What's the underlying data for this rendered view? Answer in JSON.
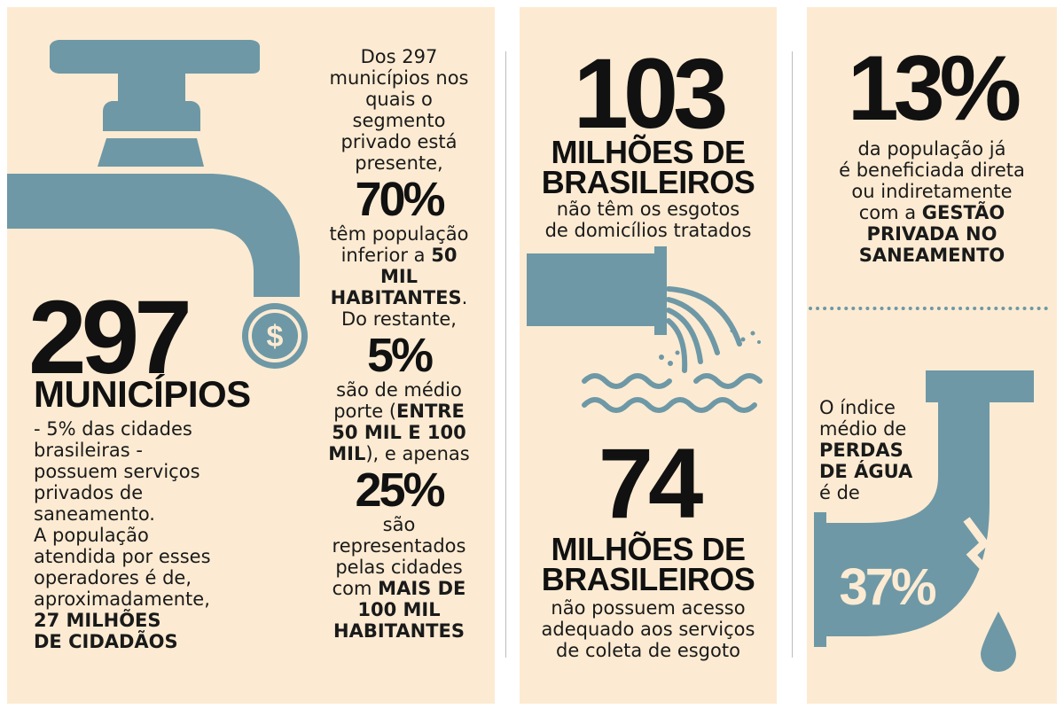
{
  "panel1": {
    "big_number": "297",
    "big_label": "MUNICÍPIOS",
    "description": {
      "line1": "- 5% das cidades",
      "line2": "brasileiras -",
      "line3": "possuem serviços",
      "line4": "privados de",
      "line5": "saneamento.",
      "line6": "A população",
      "line7": "atendida por esses",
      "line8": "operadores é de,",
      "line9": "aproximadamente,",
      "bold1": "27 MILHÕES",
      "bold2": "DE CIDADÃOS"
    },
    "coin_symbol": "$",
    "column": {
      "intro1": "Dos 297",
      "intro2": "municípios nos",
      "intro3": "quais o",
      "intro4": "segmento",
      "intro5": "privado está",
      "intro6": "presente,",
      "pct1": "70%",
      "a1": "têm população",
      "a2_pre": "inferior a",
      "a2_bold": "50",
      "a3_bold": "MIL",
      "a4_bold": "HABITANTES",
      "a4_post": ".",
      "a5": "Do restante,",
      "pct2": "5%",
      "b1": "são de médio",
      "b2_pre": "porte (",
      "b2_bold": "ENTRE",
      "b3_bold": "50 MIL E 100",
      "b4_bold": "MIL",
      "b4_post": "), e apenas",
      "pct3": "25%",
      "c1": "são",
      "c2": "representados",
      "c3": "pelas cidades",
      "c4_pre": "com",
      "c4_bold": "MAIS DE",
      "c5_bold": "100 MIL",
      "c6_bold": "HABITANTES"
    }
  },
  "panel2": {
    "number1": "103",
    "label1_line1": "MILHÕES DE",
    "label1_line2": "BRASILEIROS",
    "desc1_line1": "não têm os esgotos",
    "desc1_line2": "de domicílios tratados",
    "number2": "74",
    "label2_line1": "MILHÕES DE",
    "label2_line2": "BRASILEIROS",
    "desc2_line1": "não possuem acesso",
    "desc2_line2": "adequado aos serviços",
    "desc2_line3": "de coleta de esgoto"
  },
  "panel3": {
    "number": "13%",
    "desc_line1": "da população já",
    "desc_line2": "é beneficiada direta",
    "desc_line3": "ou indiretamente",
    "desc_line4_pre": "com a",
    "desc_line4_bold": "GESTÃO",
    "desc_line5_bold": "PRIVADA NO",
    "desc_line6_bold": "SANEAMENTO",
    "index_line1": "O índice",
    "index_line2": "médio de",
    "index_line3_bold": "PERDAS",
    "index_line4_bold": "DE ÁGUA",
    "index_line5": "é de",
    "loss_value": "37%"
  },
  "colors": {
    "background": "#fcebd2",
    "accent": "#6e98a6",
    "text": "#111111"
  },
  "icons": [
    "faucet-icon",
    "coin-icon",
    "sewage-pipe-icon",
    "water-waves-icon",
    "leaking-pipe-icon",
    "water-drop-icon"
  ]
}
